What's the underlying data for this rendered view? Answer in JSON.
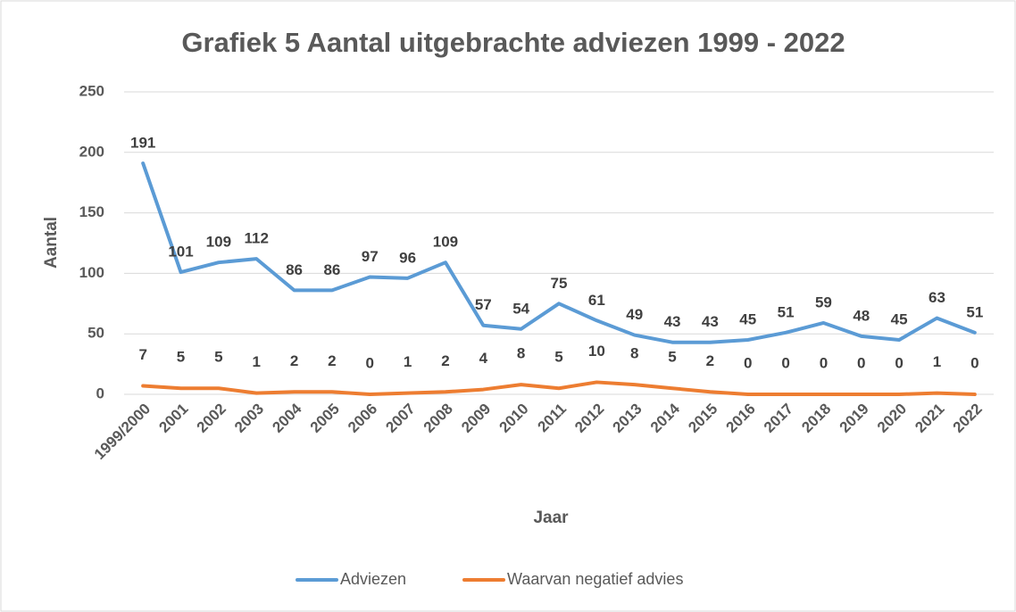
{
  "chart_data": {
    "type": "line",
    "title": "Grafiek 5 Aantal uitgebrachte adviezen 1999 - 2022",
    "x_label": "Jaar",
    "y_label": "Aantal",
    "categories": [
      "1999/2000",
      "2001",
      "2002",
      "2003",
      "2004",
      "2005",
      "2006",
      "2007",
      "2008",
      "2009",
      "2010",
      "2011",
      "2012",
      "2013",
      "2014",
      "2015",
      "2016",
      "2017",
      "2018",
      "2019",
      "2020",
      "2021",
      "2022"
    ],
    "series": [
      {
        "name": "Adviezen",
        "color": "#5b9bd5",
        "values": [
          191,
          101,
          109,
          112,
          86,
          86,
          97,
          96,
          109,
          57,
          54,
          75,
          61,
          49,
          43,
          43,
          45,
          51,
          59,
          48,
          45,
          63,
          51
        ]
      },
      {
        "name": "Waarvan negatief advies",
        "color": "#ed7d31",
        "values": [
          7,
          5,
          5,
          1,
          2,
          2,
          0,
          1,
          2,
          4,
          8,
          5,
          10,
          8,
          5,
          2,
          0,
          0,
          0,
          0,
          0,
          1,
          0
        ]
      }
    ],
    "ylim": [
      0,
      250
    ],
    "yticks": [
      0,
      50,
      100,
      150,
      200,
      250
    ],
    "grid": true,
    "legend": "bottom"
  }
}
